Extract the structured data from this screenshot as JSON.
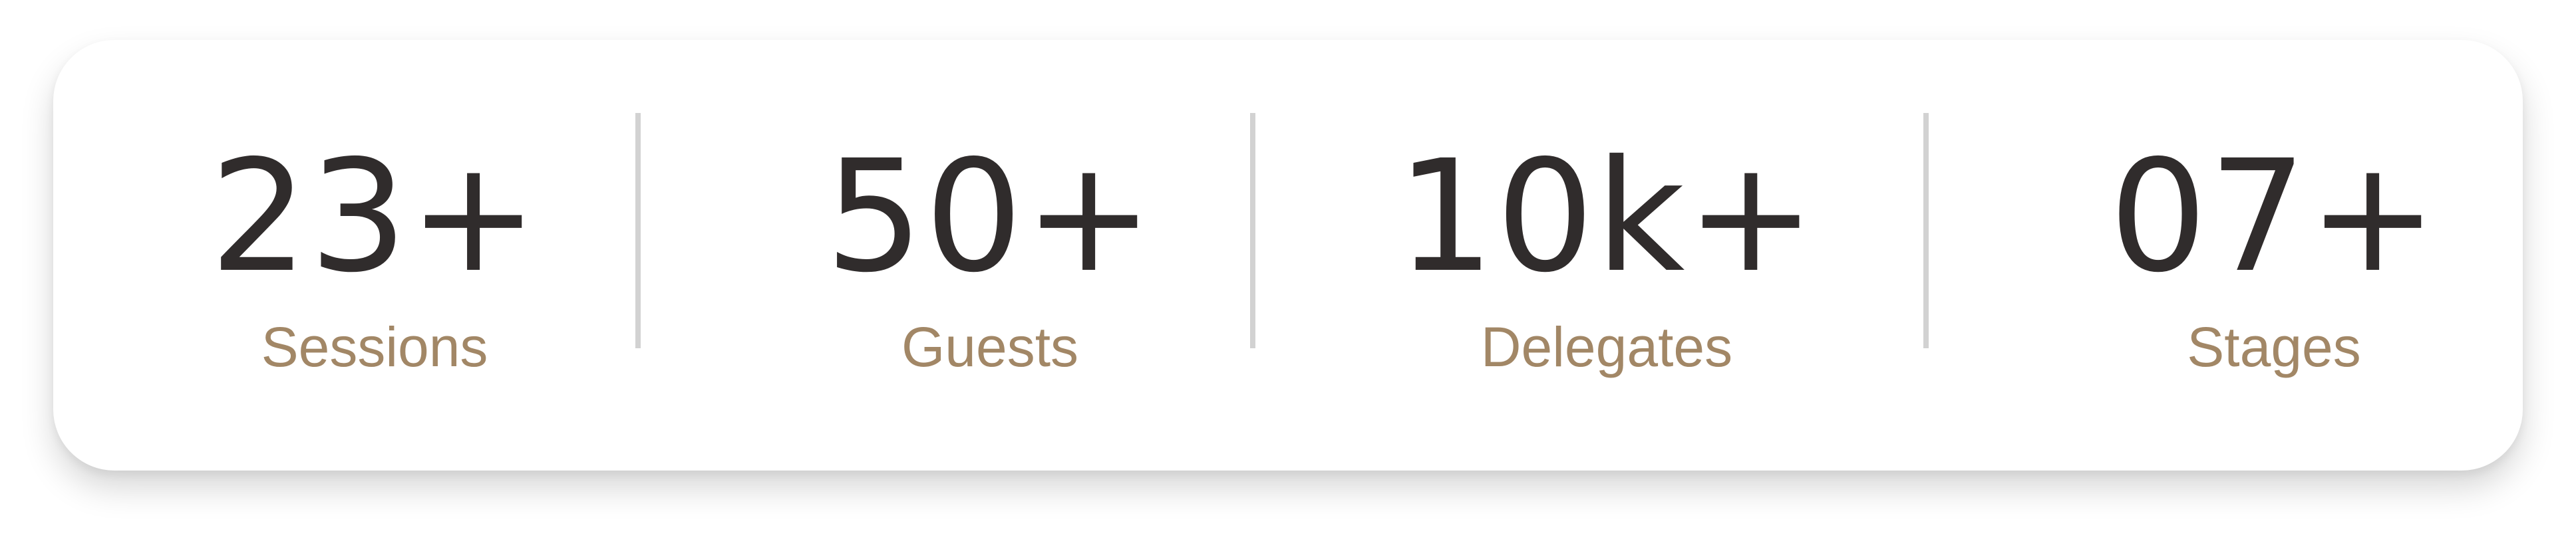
{
  "stats": [
    {
      "value": "23+",
      "label": "Sessions"
    },
    {
      "value": "50+",
      "label": "Guests"
    },
    {
      "value": "10k+",
      "label": "Delegates"
    },
    {
      "value": "07+",
      "label": "Stages"
    }
  ],
  "colors": {
    "number": "#302c2c",
    "label": "#a28766",
    "divider": "#d2d2d2",
    "card": "#ffffff"
  }
}
